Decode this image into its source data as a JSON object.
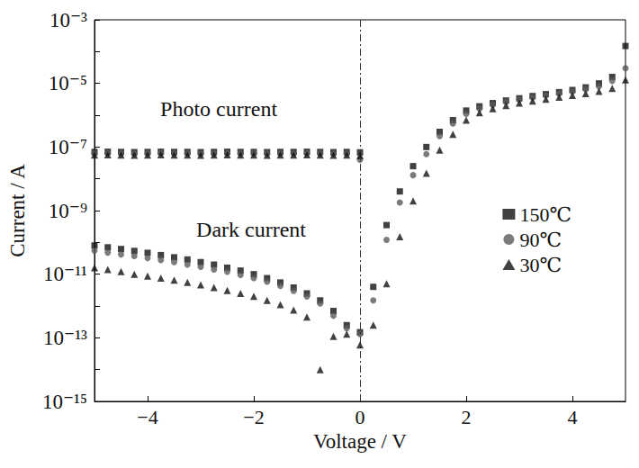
{
  "chart_data": {
    "type": "scatter",
    "x_label": "Voltage / V",
    "y_label": "Current / A",
    "log": "y",
    "grid": false,
    "legend": "right",
    "xlim": [
      -5,
      5
    ],
    "xticks": [
      {
        "value": -4,
        "label": "−4"
      },
      {
        "value": -2,
        "label": "−2"
      },
      0,
      2,
      4
    ],
    "ylim": [
      1e-15,
      0.001
    ],
    "yticks": [
      {
        "value": 1e-15,
        "label": "10⁻¹⁵"
      },
      {
        "value": 1e-13,
        "label": "10⁻¹³"
      },
      {
        "value": 1e-11,
        "label": "10⁻¹¹"
      },
      {
        "value": 1e-09,
        "label": "10⁻⁹"
      },
      {
        "value": 1e-07,
        "label": "10⁻⁷"
      },
      {
        "value": 1e-05,
        "label": "10⁻⁵"
      },
      {
        "value": 0.001,
        "label": "10⁻³"
      }
    ],
    "vertical_line": {
      "x": 0,
      "line_style": "dashdot"
    },
    "annotations": [
      {
        "text": "Photo current",
        "x": -2.66,
        "y": 1.6e-06
      },
      {
        "text": "Dark current",
        "x": -2.05,
        "y": 2.5e-10
      }
    ],
    "x": [
      -5,
      -4.75,
      -4.5,
      -4.25,
      -4,
      -3.75,
      -3.5,
      -3.25,
      -3,
      -2.75,
      -2.5,
      -2.25,
      -2,
      -1.75,
      -1.5,
      -1.25,
      -1,
      -0.75,
      -0.5,
      -0.25,
      0,
      0.25,
      0.5,
      0.75,
      1,
      1.25,
      1.5,
      1.75,
      2,
      2.25,
      2.5,
      2.75,
      3,
      3.25,
      3.5,
      3.75,
      4,
      4.25,
      4.5,
      4.75,
      5
    ],
    "photo_x": [
      -5,
      -4.75,
      -4.5,
      -4.25,
      -4,
      -3.75,
      -3.5,
      -3.25,
      -3,
      -2.75,
      -2.5,
      -2.25,
      -2,
      -1.75,
      -1.5,
      -1.25,
      -1,
      -0.75,
      -0.5,
      -0.25,
      0
    ],
    "series": [
      {
        "name": "150℃",
        "color": "#111111",
        "marker": "square",
        "values": [
          8e-11,
          7e-11,
          6.2e-11,
          5.4e-11,
          4.7e-11,
          4e-11,
          3.4e-11,
          2.9e-11,
          2.4e-11,
          2e-11,
          1.6e-11,
          1.3e-11,
          1e-11,
          7.5e-12,
          5.5e-12,
          3.8e-12,
          2.5e-12,
          1.5e-12,
          7e-13,
          2.5e-13,
          1.5e-13,
          4e-12,
          3.5e-10,
          4e-09,
          2.5e-08,
          1e-07,
          3e-07,
          7e-07,
          1.4e-06,
          1.9e-06,
          2.4e-06,
          2.9e-06,
          3.4e-06,
          4e-06,
          4.6e-06,
          5.3e-06,
          6.2e-06,
          7.5e-06,
          1e-05,
          1.6e-05,
          0.00015
        ],
        "photo_values": [
          7e-08,
          7.1e-08,
          7e-08,
          6.9e-08,
          7e-08,
          7.1e-08,
          7e-08,
          7e-08,
          6.9e-08,
          7e-08,
          7.1e-08,
          7e-08,
          7e-08,
          6.9e-08,
          7e-08,
          7e-08,
          7.1e-08,
          7e-08,
          6.9e-08,
          7e-08,
          6.8e-08
        ]
      },
      {
        "name": "90℃",
        "color": "#5a5a5a",
        "marker": "circle",
        "values": [
          5.5e-11,
          4.8e-11,
          4.2e-11,
          3.7e-11,
          3.2e-11,
          2.8e-11,
          2.4e-11,
          2e-11,
          1.7e-11,
          1.4e-11,
          1.2e-11,
          9.5e-12,
          7.5e-12,
          5.8e-12,
          4.3e-12,
          3e-12,
          2e-12,
          1.2e-12,
          5e-13,
          2e-13,
          1.3e-13,
          1.5e-12,
          1.2e-10,
          1.8e-09,
          1.3e-08,
          6e-08,
          2.2e-07,
          5.5e-07,
          1.1e-06,
          1.6e-06,
          2.1e-06,
          2.6e-06,
          3.1e-06,
          3.6e-06,
          4.2e-06,
          4.8e-06,
          5.5e-06,
          6.5e-06,
          8e-06,
          1.2e-05,
          3e-05
        ],
        "photo_values": [
          6.3e-08,
          6.4e-08,
          6.3e-08,
          6.2e-08,
          6.3e-08,
          6.4e-08,
          6.3e-08,
          6.3e-08,
          6.2e-08,
          6.3e-08,
          6.4e-08,
          6.3e-08,
          6.3e-08,
          6.2e-08,
          6.3e-08,
          6.3e-08,
          6.4e-08,
          6.3e-08,
          6.2e-08,
          6.2e-08,
          4e-08
        ]
      },
      {
        "name": "30℃",
        "color": "#111111",
        "marker": "triangle",
        "values": [
          1.6e-11,
          1.4e-11,
          1.2e-11,
          1e-11,
          8.8e-12,
          7.6e-12,
          6.5e-12,
          5.5e-12,
          4.6e-12,
          3.8e-12,
          3.1e-12,
          2.5e-12,
          2e-12,
          1.5e-12,
          1.1e-12,
          7.5e-13,
          4.5e-13,
          1e-14,
          1.1e-13,
          1.3e-13,
          6e-14,
          2.5e-13,
          5e-12,
          1.5e-10,
          2e-09,
          1.5e-08,
          8e-08,
          2.5e-07,
          7e-07,
          1.2e-06,
          1.6e-06,
          2e-06,
          2.4e-06,
          2.8e-06,
          3.2e-06,
          3.7e-06,
          4.2e-06,
          4.8e-06,
          5.6e-06,
          7e-06,
          1.3e-05
        ],
        "photo_values": [
          5.6e-08,
          5.7e-08,
          5.6e-08,
          5.5e-08,
          5.6e-08,
          5.7e-08,
          5.6e-08,
          5.6e-08,
          5.5e-08,
          5.6e-08,
          5.7e-08,
          5.6e-08,
          5.6e-08,
          5.5e-08,
          5.6e-08,
          5.6e-08,
          5.7e-08,
          5.6e-08,
          5.5e-08,
          5.6e-08,
          5.4e-08
        ]
      }
    ]
  }
}
